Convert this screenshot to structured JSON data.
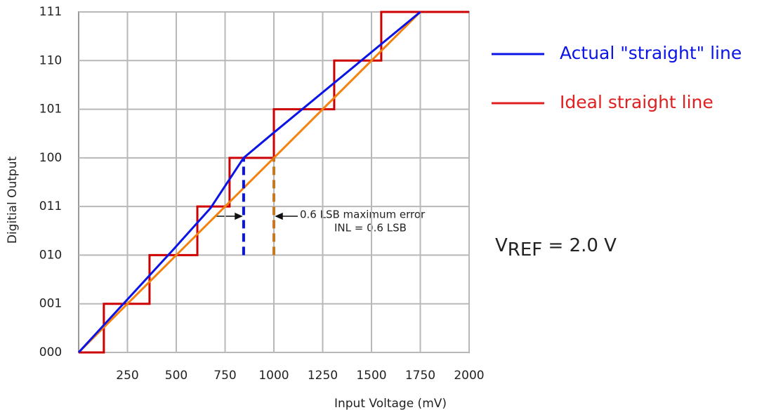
{
  "chart_data": {
    "type": "line",
    "x_label": "Input Voltage (mV)",
    "y_label": "Digitial Output",
    "xlim": [
      0,
      2000
    ],
    "xticks": [
      250,
      500,
      750,
      1000,
      1250,
      1500,
      1750,
      2000
    ],
    "ylim": [
      0,
      7
    ],
    "yticks": [
      {
        "value": 0,
        "label": "000"
      },
      {
        "value": 1,
        "label": "001"
      },
      {
        "value": 2,
        "label": "010"
      },
      {
        "value": 3,
        "label": "011"
      },
      {
        "value": 4,
        "label": "100"
      },
      {
        "value": 5,
        "label": "101"
      },
      {
        "value": 6,
        "label": "110"
      },
      {
        "value": 7,
        "label": "111"
      }
    ],
    "grid": true,
    "series": [
      {
        "color": "#cc0000",
        "step": true,
        "x": [
          0,
          129,
          363,
          608,
          773,
          1000,
          1309,
          1550,
          2000
        ],
        "values": [
          0,
          1,
          2,
          3,
          4,
          5,
          6,
          7,
          7
        ]
      },
      {
        "name": "Ideal straight line",
        "color": "#f5820f",
        "legend_color": "#e02020",
        "x": [
          0,
          1750
        ],
        "values": [
          0,
          7
        ]
      },
      {
        "name": "Actual \"straight\" line",
        "color": "#0a14e6",
        "x": [
          0,
          486,
          676,
          845,
          1000,
          1750
        ],
        "values": [
          0,
          2.12,
          2.97,
          4.0,
          4.52,
          7
        ]
      }
    ],
    "markers": [
      {
        "x": 845,
        "y": [
          2,
          4
        ],
        "color": "#0a14e6"
      },
      {
        "x": 1000,
        "y": [
          2,
          4
        ],
        "color": "#c87822"
      }
    ],
    "annotations": [
      "0.6 LSB maximum error",
      "INL = 0.6 LSB"
    ],
    "vref": {
      "main": "V",
      "sub": "REF",
      "rest": " = 2.0 V"
    }
  }
}
